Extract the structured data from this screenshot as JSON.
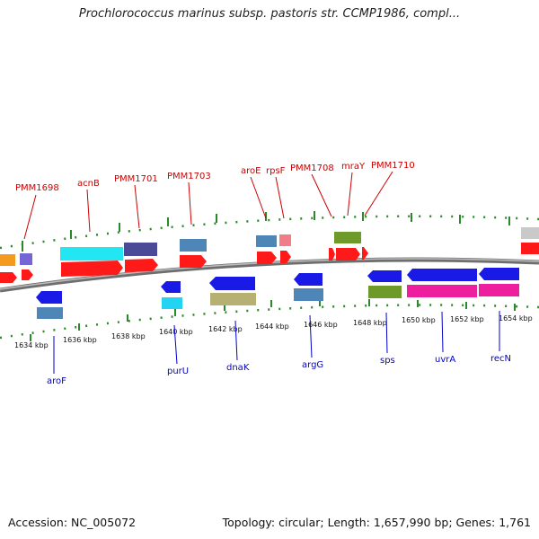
{
  "title": "Prochlorococcus marinus subsp. pastoris str. CCMP1986, compl...",
  "footer": {
    "accession": "Accession: NC_005072",
    "summary": "Topology: circular; Length: 1,657,990 bp; Genes: 1,761"
  },
  "colors": {
    "red_label": "#cc0000",
    "blue_label": "#0000cc",
    "backbone": "#888888",
    "tick": "#228822"
  },
  "scale_labels": [
    "1634 kbp",
    "1636 kbp",
    "1638 kbp",
    "1640 kbp",
    "1642 kbp",
    "1644 kbp",
    "1646 kbp",
    "1648 kbp",
    "1650 kbp",
    "1652 kbp",
    "1654 kbp"
  ],
  "top_labels": [
    "PMM1698",
    "acnB",
    "PMM1701",
    "PMM1703",
    "aroE",
    "rpsF",
    "PMM1708",
    "mraY",
    "PMM1710"
  ],
  "bottom_labels": [
    "aroF",
    "purU",
    "dnaK",
    "argG",
    "sps",
    "uvrA",
    "recN"
  ]
}
